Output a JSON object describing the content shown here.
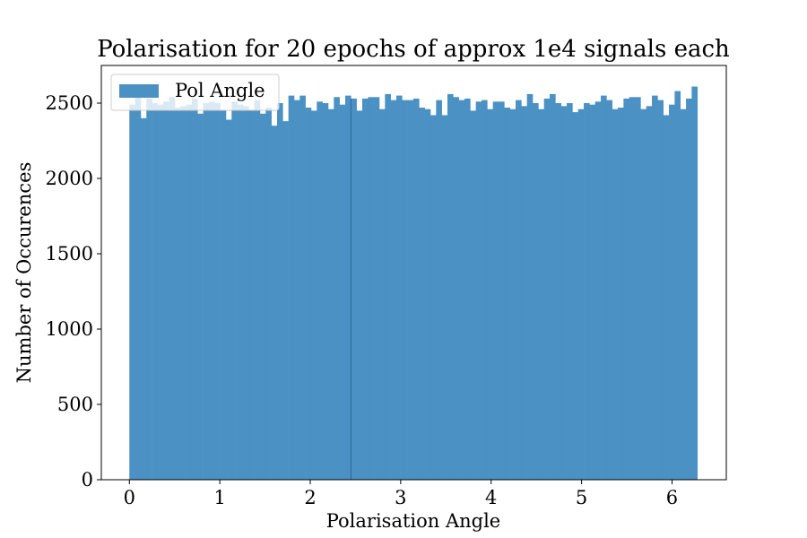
{
  "chart_data": {
    "type": "bar",
    "title": "Polarisation for 20 epochs of approx 1e4 signals each",
    "xlabel": "Polarisation Angle",
    "ylabel": "Number of Occurences",
    "xlim": [
      -0.31,
      6.6
    ],
    "ylim": [
      0,
      2750
    ],
    "xticks": [
      0,
      1,
      2,
      3,
      4,
      5,
      6
    ],
    "yticks": [
      0,
      500,
      1000,
      1500,
      2000,
      2500
    ],
    "grid": false,
    "legend_position": "top-left",
    "bin_start": 0,
    "bin_width": 0.0628,
    "series": [
      {
        "name": "Pol Angle",
        "color": "#4b91c3",
        "values": [
          2490,
          2540,
          2400,
          2530,
          2500,
          2490,
          2510,
          2540,
          2470,
          2480,
          2490,
          2530,
          2430,
          2500,
          2510,
          2500,
          2450,
          2390,
          2510,
          2490,
          2480,
          2450,
          2520,
          2430,
          2470,
          2350,
          2500,
          2380,
          2550,
          2520,
          2550,
          2470,
          2450,
          2510,
          2500,
          2460,
          2540,
          2490,
          2550,
          2530,
          2450,
          2530,
          2540,
          2540,
          2460,
          2560,
          2520,
          2550,
          2520,
          2520,
          2530,
          2470,
          2460,
          2420,
          2520,
          2420,
          2560,
          2540,
          2520,
          2530,
          2450,
          2510,
          2520,
          2460,
          2510,
          2510,
          2470,
          2460,
          2520,
          2480,
          2560,
          2500,
          2460,
          2530,
          2560,
          2500,
          2480,
          2500,
          2440,
          2460,
          2500,
          2490,
          2510,
          2550,
          2520,
          2460,
          2470,
          2530,
          2540,
          2540,
          2460,
          2480,
          2550,
          2520,
          2420,
          2490,
          2580,
          2460,
          2530,
          2610
        ]
      }
    ]
  }
}
